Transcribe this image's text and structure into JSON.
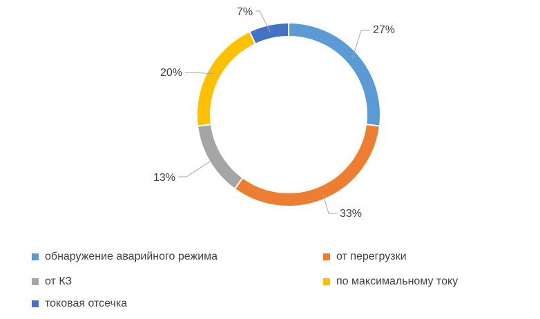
{
  "chart_data": {
    "type": "pie",
    "title": "",
    "categories": [
      "обнаружение аварийного режима",
      "от перегрузки",
      "от КЗ",
      "по максимальному току",
      "токовая отсечка"
    ],
    "values": [
      27,
      33,
      13,
      20,
      7
    ],
    "labels": [
      "27%",
      "33%",
      "13%",
      "20%",
      "7%"
    ],
    "colors": [
      "#5B9BD5",
      "#ED7D31",
      "#A5A5A5",
      "#FFC000",
      "#4472C4"
    ],
    "donut": true,
    "legend_position": "bottom"
  }
}
